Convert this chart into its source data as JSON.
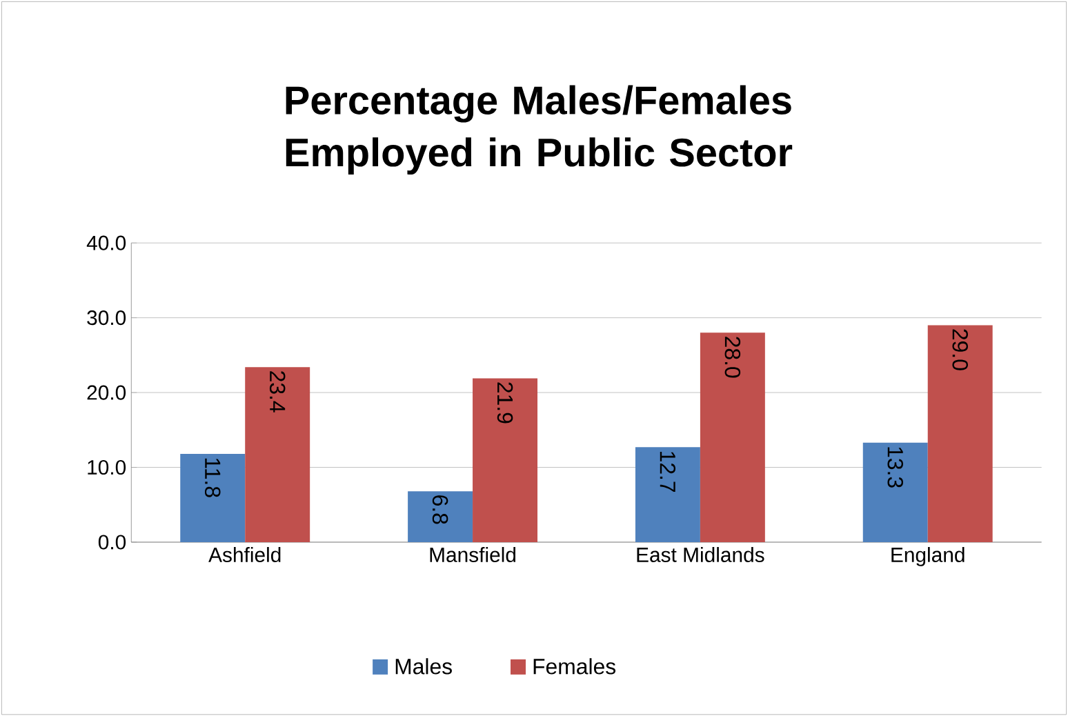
{
  "chart_data": {
    "type": "bar",
    "title": "Percentage Males/Females Employed in Public Sector",
    "categories": [
      "Ashfield",
      "Mansfield",
      "East Midlands",
      "England"
    ],
    "series": [
      {
        "name": "Males",
        "color": "#4f81bd",
        "values": [
          11.8,
          6.8,
          12.7,
          13.3
        ],
        "value_labels": [
          "11.8",
          "6.8",
          "12.7",
          "13.3"
        ]
      },
      {
        "name": "Females",
        "color": "#c0504d",
        "values": [
          23.4,
          21.9,
          28.0,
          29.0
        ],
        "value_labels": [
          "23.4",
          "21.9",
          "28.0",
          "29.0"
        ]
      }
    ],
    "ylim": [
      0,
      40
    ],
    "yticks": [
      {
        "value": 0,
        "label": "0.0"
      },
      {
        "value": 10,
        "label": "10.0"
      },
      {
        "value": 20,
        "label": "20.0"
      },
      {
        "value": 30,
        "label": "30.0"
      },
      {
        "value": 40,
        "label": "40.0"
      }
    ],
    "grid": "y",
    "legend": "bottom"
  }
}
